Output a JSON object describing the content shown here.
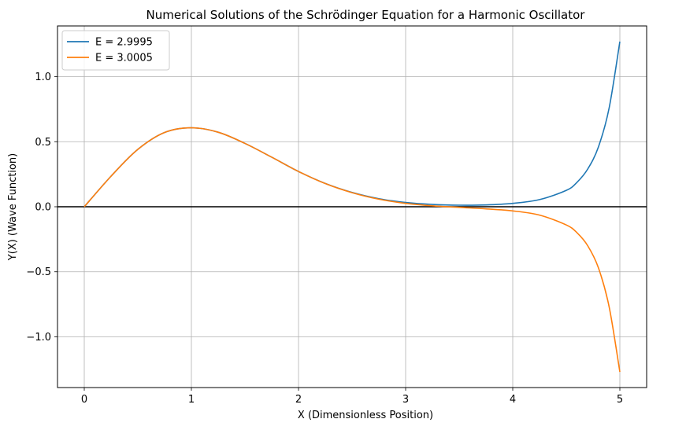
{
  "chart_data": {
    "type": "line",
    "title": "Numerical Solutions of the Schrödinger Equation for a Harmonic Oscillator",
    "xlabel": "X (Dimensionless Position)",
    "ylabel": "Y(X) (Wave Function)",
    "xlim": [
      -0.25,
      5.25
    ],
    "ylim": [
      -1.39,
      1.39
    ],
    "xticks": [
      0,
      1,
      2,
      3,
      4,
      5
    ],
    "xtick_labels": [
      "0",
      "1",
      "2",
      "3",
      "4",
      "5"
    ],
    "yticks": [
      -1.0,
      -0.5,
      0.0,
      0.5,
      1.0
    ],
    "ytick_labels": [
      "−1.0",
      "−0.5",
      "0.0",
      "0.5",
      "1.0"
    ],
    "grid": true,
    "legend_position": "top-left",
    "zero_line": {
      "y": 0,
      "color": "#000000"
    },
    "series": [
      {
        "name": "E = 2.9995",
        "color": "#1f77b4",
        "x": [
          0,
          0.25,
          0.5,
          0.75,
          1.0,
          1.25,
          1.5,
          1.75,
          2.0,
          2.25,
          2.5,
          2.75,
          3.0,
          3.25,
          3.5,
          3.75,
          4.0,
          4.25,
          4.5,
          4.6,
          4.7,
          4.8,
          4.9,
          5.0
        ],
        "y": [
          0,
          0.235,
          0.441,
          0.571,
          0.607,
          0.573,
          0.487,
          0.381,
          0.271,
          0.179,
          0.11,
          0.062,
          0.033,
          0.018,
          0.012,
          0.014,
          0.026,
          0.055,
          0.126,
          0.188,
          0.29,
          0.46,
          0.76,
          1.27
        ]
      },
      {
        "name": "E = 3.0005",
        "color": "#ff7f0e",
        "x": [
          0,
          0.25,
          0.5,
          0.75,
          1.0,
          1.25,
          1.5,
          1.75,
          2.0,
          2.25,
          2.5,
          2.75,
          3.0,
          3.25,
          3.5,
          3.75,
          4.0,
          4.25,
          4.5,
          4.6,
          4.7,
          4.8,
          4.9,
          5.0
        ],
        "y": [
          0,
          0.235,
          0.441,
          0.571,
          0.607,
          0.573,
          0.487,
          0.381,
          0.271,
          0.178,
          0.108,
          0.058,
          0.026,
          0.007,
          -0.005,
          -0.016,
          -0.032,
          -0.064,
          -0.14,
          -0.2,
          -0.3,
          -0.47,
          -0.77,
          -1.27
        ]
      }
    ]
  }
}
